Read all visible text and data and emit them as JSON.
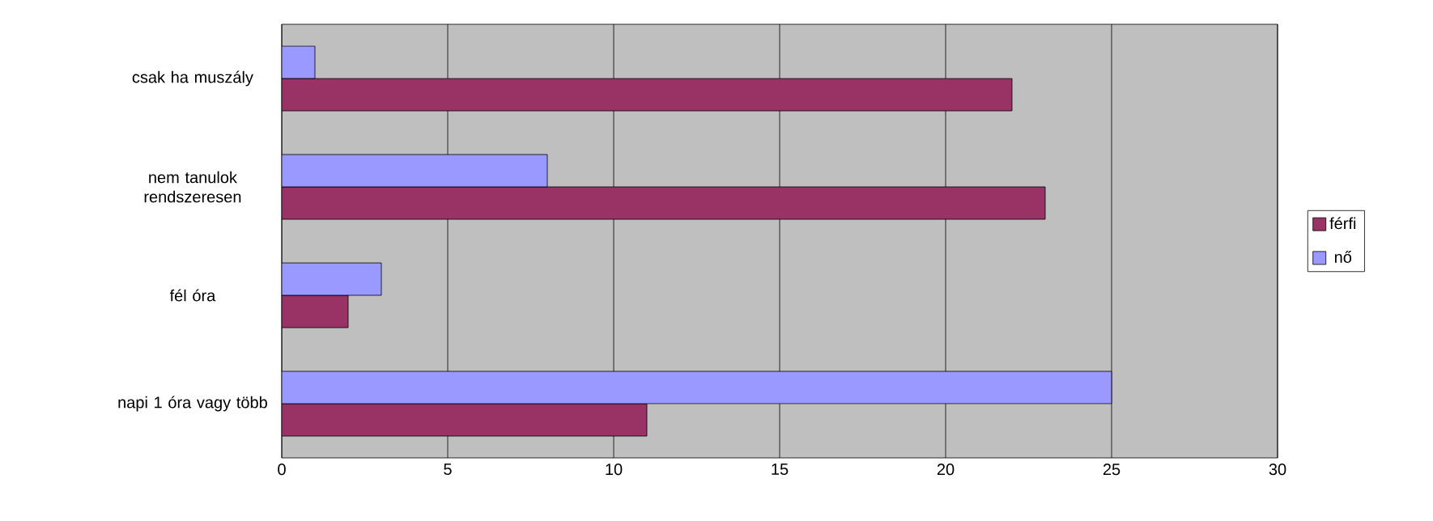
{
  "chart_data": {
    "type": "bar",
    "orientation": "horizontal",
    "categories": [
      "csak ha muszály",
      "nem tanulok rendszeresen",
      "fél óra",
      "napi 1 óra vagy több"
    ],
    "series": [
      {
        "name": "férfi",
        "color": "#993366",
        "values": [
          22,
          23,
          2,
          11
        ]
      },
      {
        "name": "nő",
        "color": "#9999ff",
        "values": [
          1,
          8,
          3,
          25
        ]
      }
    ],
    "xlim": [
      0,
      30
    ],
    "xticks": [
      0,
      5,
      10,
      15,
      20,
      25,
      30
    ],
    "grid": "x",
    "legend": "right"
  }
}
